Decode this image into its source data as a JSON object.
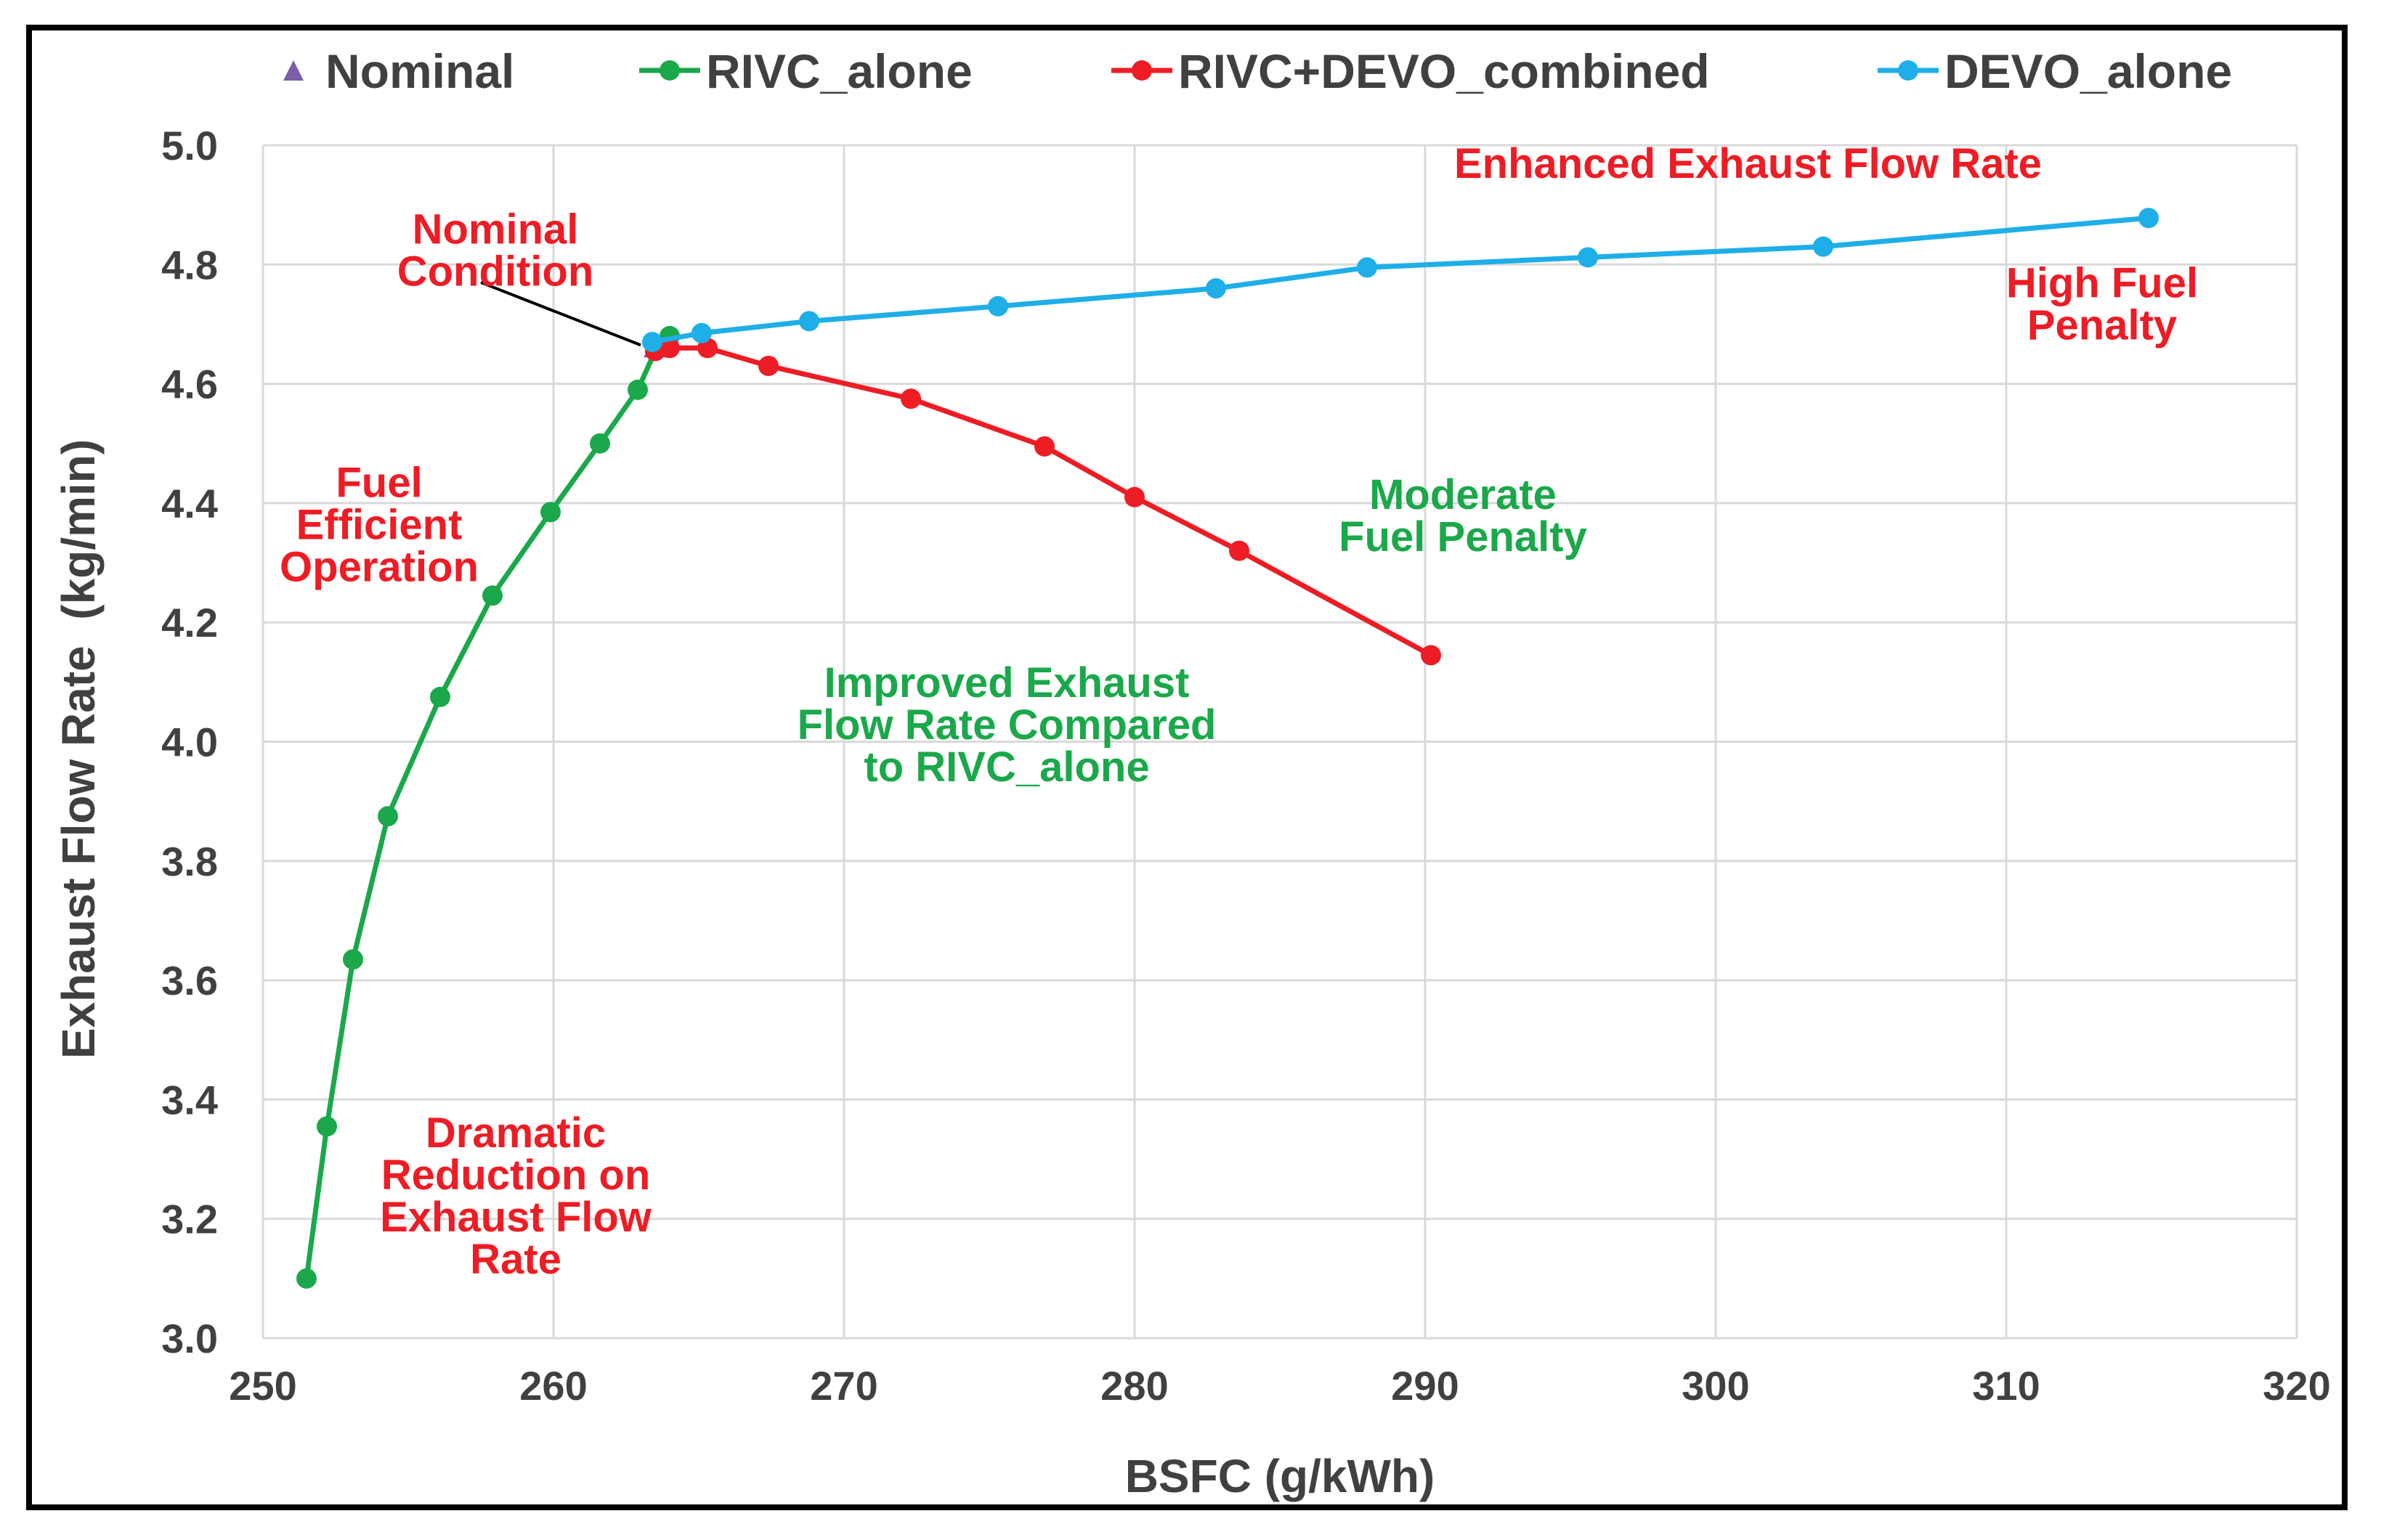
{
  "chart_data": {
    "type": "line",
    "title": "",
    "xlabel": "BSFC (g/kWh)",
    "ylabel": "Exhaust Flow Rate  (kg/min)",
    "xlim": [
      250,
      320
    ],
    "ylim": [
      3.0,
      5.0
    ],
    "x_ticks": [
      250,
      260,
      270,
      280,
      290,
      300,
      310,
      320
    ],
    "y_ticks": [
      3.0,
      3.2,
      3.4,
      3.6,
      3.8,
      4.0,
      4.2,
      4.4,
      4.6,
      4.8,
      5.0
    ],
    "x_tick_labels": [
      "250",
      "260",
      "270",
      "280",
      "290",
      "300",
      "310",
      "320"
    ],
    "y_tick_labels": [
      "3.0",
      "3.2",
      "3.4",
      "3.6",
      "3.8",
      "4.0",
      "4.2",
      "4.4",
      "4.6",
      "4.8",
      "5.0"
    ],
    "grid": true,
    "legend_position": "top",
    "series": [
      {
        "name": "Nominal",
        "marker": "triangle",
        "line": false,
        "color": "#7a5fa8",
        "points": [
          [
            263.5,
            4.66
          ]
        ]
      },
      {
        "name": "RIVC_alone",
        "marker": "circle",
        "line": true,
        "color": "#1aa84a",
        "points": [
          [
            251.5,
            3.1
          ],
          [
            252.2,
            3.355
          ],
          [
            253.1,
            3.635
          ],
          [
            254.3,
            3.875
          ],
          [
            256.1,
            4.075
          ],
          [
            257.9,
            4.245
          ],
          [
            259.9,
            4.385
          ],
          [
            261.6,
            4.5
          ],
          [
            262.9,
            4.59
          ],
          [
            263.5,
            4.655
          ],
          [
            264.0,
            4.68
          ]
        ]
      },
      {
        "name": "RIVC+DEVO_combined",
        "marker": "circle",
        "line": true,
        "color": "#ee1c24",
        "points": [
          [
            263.5,
            4.655
          ],
          [
            264.0,
            4.66
          ],
          [
            265.3,
            4.66
          ],
          [
            267.4,
            4.63
          ],
          [
            272.3,
            4.575
          ],
          [
            276.9,
            4.495
          ],
          [
            280.0,
            4.41
          ],
          [
            283.6,
            4.32
          ],
          [
            290.2,
            4.145
          ]
        ]
      },
      {
        "name": "DEVO_alone",
        "marker": "circle",
        "line": true,
        "color": "#1eaee8",
        "points": [
          [
            263.4,
            4.67
          ],
          [
            265.1,
            4.685
          ],
          [
            268.8,
            4.705
          ],
          [
            275.3,
            4.73
          ],
          [
            282.8,
            4.76
          ],
          [
            288.0,
            4.795
          ],
          [
            295.6,
            4.812
          ],
          [
            303.7,
            4.83
          ],
          [
            314.9,
            4.878
          ]
        ]
      }
    ],
    "annotations": [
      {
        "lines": [
          "Nominal",
          "Condition"
        ],
        "color": "#ee1c24",
        "x": 258.0,
        "y": 4.835,
        "anchor": "middle",
        "arrow_to": [
          263.0,
          4.665
        ],
        "arrow_from": [
          257.5,
          4.77
        ]
      },
      {
        "lines": [
          "Enhanced Exhaust Flow Rate"
        ],
        "color": "#ee1c24",
        "x": 291.0,
        "y": 4.945,
        "anchor": "start"
      },
      {
        "lines": [
          "High Fuel",
          "Penalty"
        ],
        "color": "#ee1c24",
        "x": 313.3,
        "y": 4.745,
        "anchor": "middle"
      },
      {
        "lines": [
          "Fuel",
          "Efficient",
          "Operation"
        ],
        "color": "#ee1c24",
        "x": 254.0,
        "y": 4.41,
        "anchor": "middle"
      },
      {
        "lines": [
          "Moderate",
          "Fuel Penalty"
        ],
        "color": "#1aa84a",
        "x": 291.3,
        "y": 4.39,
        "anchor": "middle"
      },
      {
        "lines": [
          "Improved Exhaust",
          "Flow Rate Compared",
          "to RIVC_alone"
        ],
        "color": "#1aa84a",
        "x": 275.6,
        "y": 4.075,
        "anchor": "middle"
      },
      {
        "lines": [
          "Dramatic",
          "Reduction on",
          "Exhaust Flow",
          "Rate"
        ],
        "color": "#ee1c24",
        "x": 258.7,
        "y": 3.32,
        "anchor": "middle"
      }
    ]
  }
}
